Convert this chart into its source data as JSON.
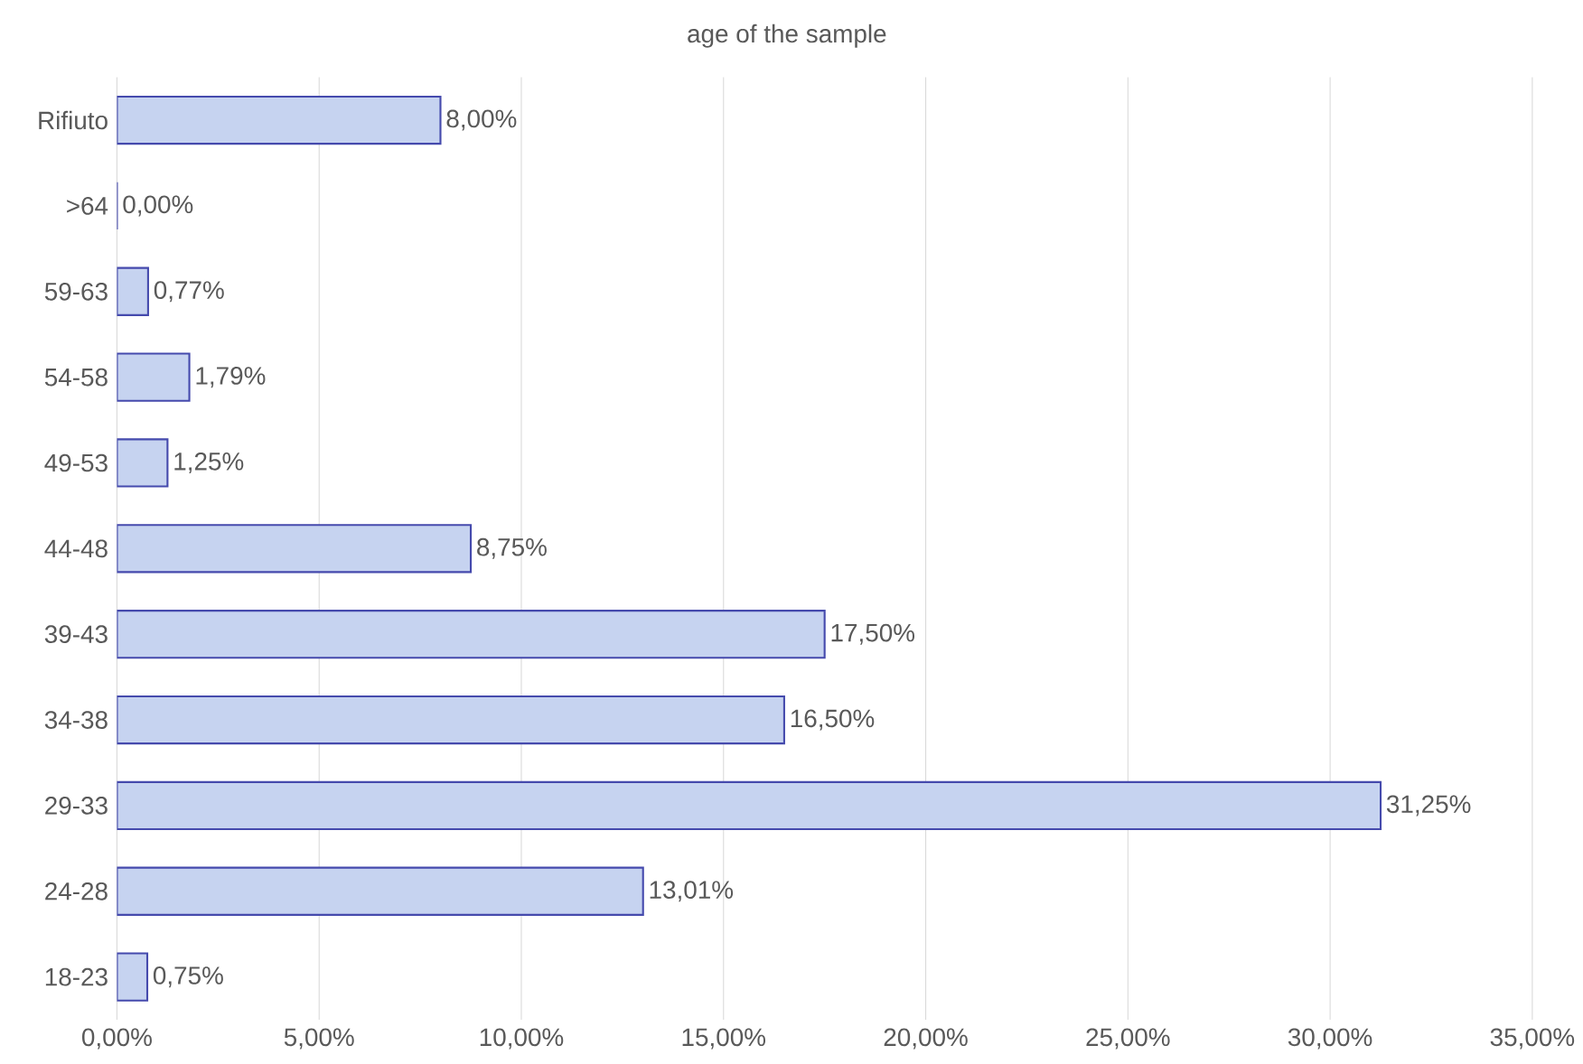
{
  "chart_data": {
    "type": "bar",
    "orientation": "horizontal",
    "title": "age of the sample",
    "categories": [
      "Rifiuto",
      ">64",
      "59-63",
      "54-58",
      "49-53",
      "44-48",
      "39-43",
      "34-38",
      "29-33",
      "24-28",
      "18-23"
    ],
    "values": [
      8.0,
      0.0,
      0.77,
      1.79,
      1.25,
      8.75,
      17.5,
      16.5,
      31.25,
      13.01,
      0.75
    ],
    "value_labels": [
      "8,00%",
      "0,00%",
      "0,77%",
      "1,79%",
      "1,25%",
      "8,75%",
      "17,50%",
      "16,50%",
      "31,25%",
      "13,01%",
      "0,75%"
    ],
    "color": "#c6d3f0",
    "xlim": [
      0,
      35
    ],
    "xticks": [
      {
        "value": 0,
        "label": "0,00%"
      },
      {
        "value": 5,
        "label": "5,00%"
      },
      {
        "value": 10,
        "label": "10,00%"
      },
      {
        "value": 15,
        "label": "15,00%"
      },
      {
        "value": 20,
        "label": "20,00%"
      },
      {
        "value": 25,
        "label": "25,00%"
      },
      {
        "value": 30,
        "label": "30,00%"
      },
      {
        "value": 35,
        "label": "35,00%"
      }
    ],
    "grid": "x"
  }
}
